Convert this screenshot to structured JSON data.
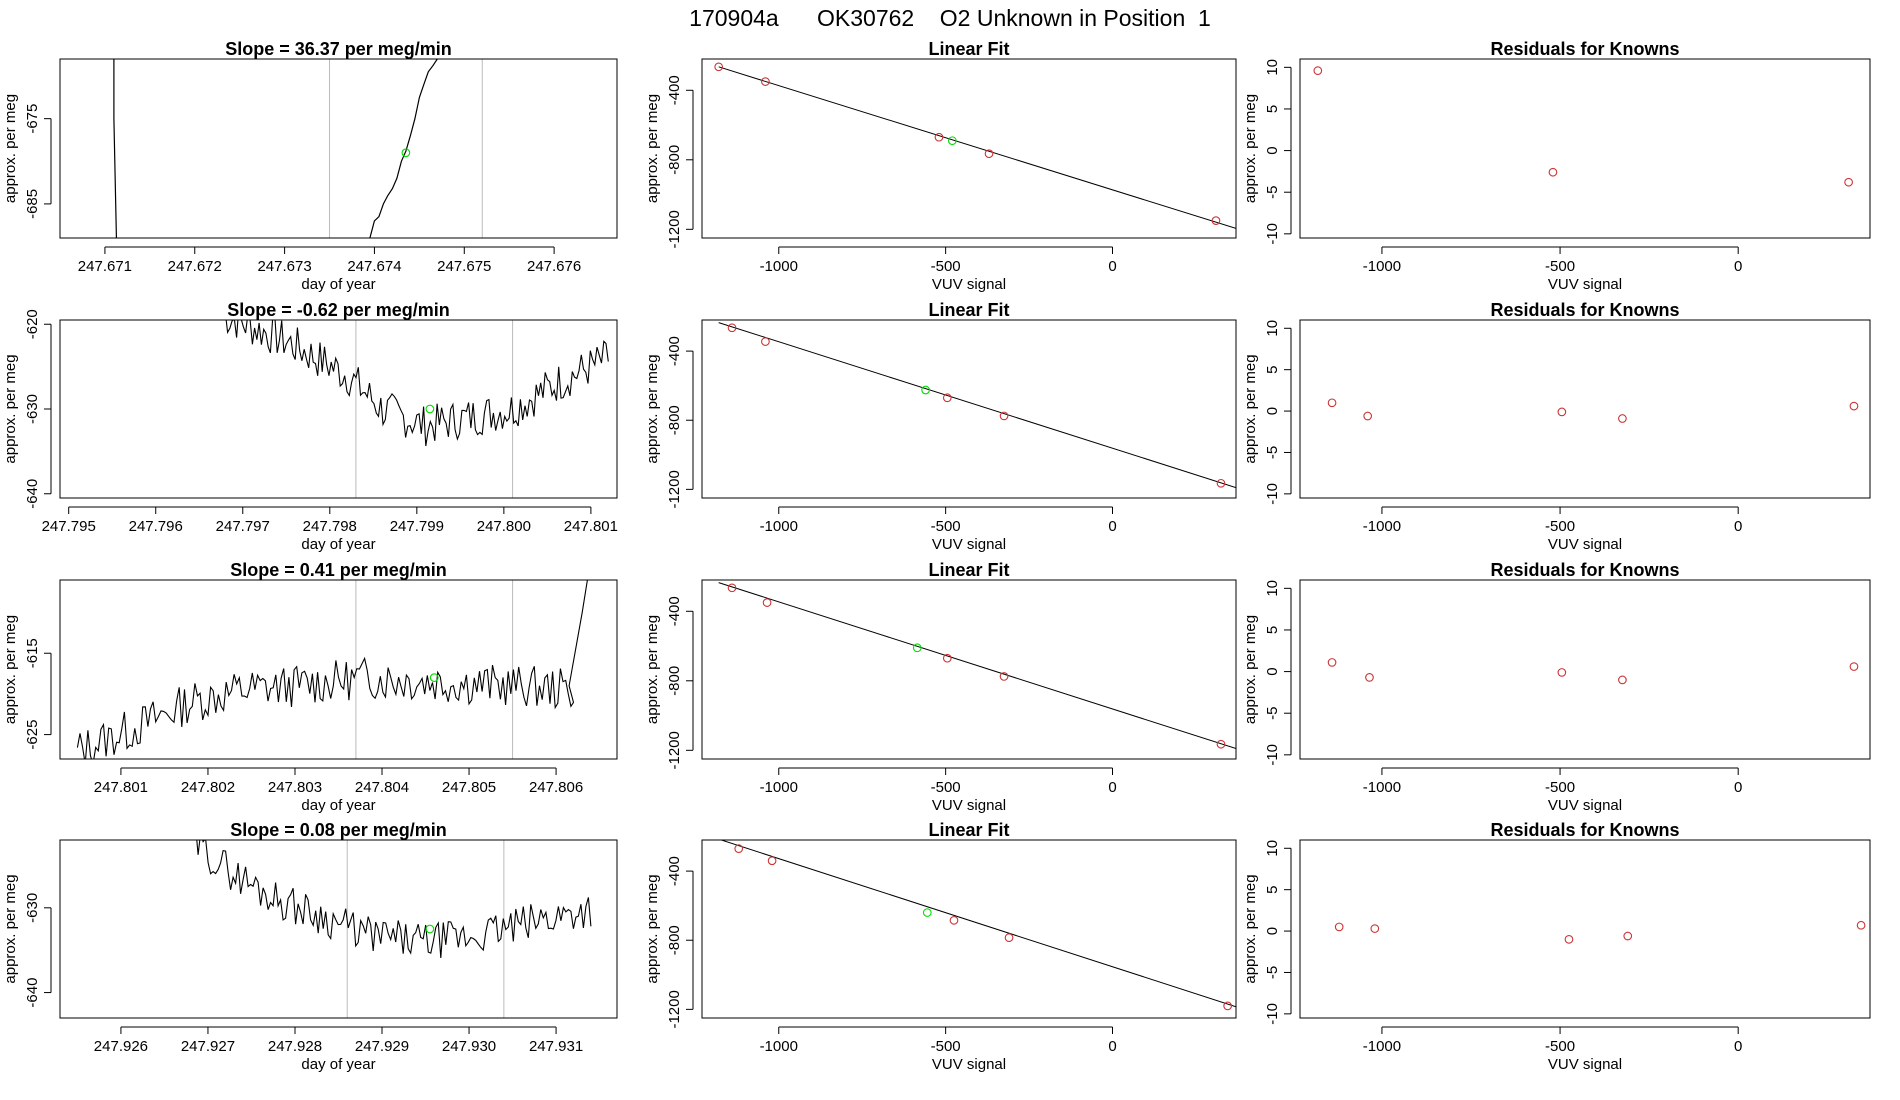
{
  "header": {
    "title": "170904a      OK30762    O2 Unknown in Position  1"
  },
  "colors": {
    "trace": "#000000",
    "unknown": "#00dd00",
    "known": "#cc3333",
    "vline": "#bbbbbb",
    "fitline": "#000000"
  },
  "chart_data": [
    {
      "type": "line",
      "kind": "trace",
      "row": 0,
      "title": "Slope =  36.37  per meg/min",
      "xlabel": "day of year",
      "ylabel": "approx. per meg",
      "xlim": [
        247.6705,
        247.6767
      ],
      "ylim": [
        -689,
        -668
      ],
      "xticks": [
        247.671,
        247.672,
        247.673,
        247.674,
        247.675,
        247.676
      ],
      "xtick_labels": [
        "247.671",
        "247.672",
        "247.673",
        "247.674",
        "247.675",
        "247.676"
      ],
      "yticks": [
        -675,
        -685
      ],
      "ytick_labels": [
        "-675",
        "-685"
      ],
      "vlines": [
        247.6735,
        247.6752
      ],
      "segments": [
        {
          "x": [
            247.6711,
            247.6711,
            247.67115
          ],
          "y": [
            -660,
            -675,
            -700
          ]
        },
        {
          "x": [
            247.6739,
            247.67395,
            247.674,
            247.67405,
            247.6741,
            247.67415,
            247.6742,
            247.67425,
            247.6743,
            247.67435,
            247.6744,
            247.67445,
            247.6745,
            247.67455,
            247.6746,
            247.67465,
            247.6747,
            247.6748
          ],
          "y": [
            -700,
            -689,
            -687,
            -686.5,
            -685,
            -684,
            -683.2,
            -682,
            -680,
            -678.8,
            -677,
            -675,
            -672.5,
            -671,
            -669.5,
            -668.8,
            -668,
            -660
          ]
        }
      ],
      "unknown": {
        "x": 247.67435,
        "y": -679
      }
    },
    {
      "type": "scatter",
      "kind": "fit",
      "row": 0,
      "title": "Linear Fit",
      "xlabel": "VUV signal",
      "ylabel": "approx. per meg",
      "xlim": [
        -1230,
        370
      ],
      "ylim": [
        -1250,
        -220
      ],
      "xticks": [
        -1000,
        -500,
        0
      ],
      "xtick_labels": [
        "-1000",
        "-500",
        "0"
      ],
      "yticks": [
        -400,
        -800,
        -1200
      ],
      "ytick_labels": [
        "-400",
        "-800",
        "-1200"
      ],
      "line": {
        "x": [
          -1180,
          370
        ],
        "y": [
          -265,
          -1195
        ]
      },
      "knowns": [
        {
          "x": -1180,
          "y": -265
        },
        {
          "x": -1040,
          "y": -350
        },
        {
          "x": -520,
          "y": -670
        },
        {
          "x": -370,
          "y": -765
        },
        {
          "x": 310,
          "y": -1150
        }
      ],
      "unknown": {
        "x": -480,
        "y": -690
      }
    },
    {
      "type": "scatter",
      "kind": "resid",
      "row": 0,
      "title": "Residuals for Knowns",
      "xlabel": "VUV signal",
      "ylabel": "approx. per meg",
      "xlim": [
        -1230,
        370
      ],
      "ylim": [
        -10.5,
        11
      ],
      "xticks": [
        -1000,
        -500,
        0
      ],
      "xtick_labels": [
        "-1000",
        "-500",
        "0"
      ],
      "yticks": [
        10,
        5,
        0,
        -5,
        -10
      ],
      "ytick_labels": [
        "10",
        "5",
        "0",
        "-5",
        "-10"
      ],
      "knowns": [
        {
          "x": -1180,
          "y": 9.6
        },
        {
          "x": -520,
          "y": -2.6
        },
        {
          "x": 310,
          "y": -3.8
        }
      ]
    },
    {
      "type": "line",
      "kind": "trace",
      "row": 1,
      "title": "Slope =  -0.62  per meg/min",
      "xlabel": "day of year",
      "ylabel": "approx. per meg",
      "xlim": [
        247.7949,
        247.8013
      ],
      "ylim": [
        -640.5,
        -619.5
      ],
      "xticks": [
        247.795,
        247.796,
        247.797,
        247.798,
        247.799,
        247.8,
        247.801
      ],
      "xtick_labels": [
        "247.795",
        "247.796",
        "247.797",
        "247.798",
        "247.799",
        "247.800",
        "247.801"
      ],
      "yticks": [
        -620,
        -630,
        -640
      ],
      "ytick_labels": [
        "-620",
        "-630",
        "-640"
      ],
      "vlines": [
        247.7983,
        247.8001
      ],
      "seed": 7,
      "t0": 247.7968,
      "t1": 247.8012,
      "n": 170,
      "yfn": [
        [
          247.7968,
          -619
        ],
        [
          247.7975,
          -622
        ],
        [
          247.7982,
          -626
        ],
        [
          247.7986,
          -630
        ],
        [
          247.7991,
          -632
        ],
        [
          247.7996,
          -631
        ],
        [
          247.8001,
          -630
        ],
        [
          247.8006,
          -627
        ],
        [
          247.8012,
          -624
        ]
      ],
      "noise": 2.4,
      "clipTop": -619.5,
      "unknown": {
        "x": 247.79915,
        "y": -630
      }
    },
    {
      "type": "scatter",
      "kind": "fit",
      "row": 1,
      "title": "Linear Fit",
      "xlabel": "VUV signal",
      "ylabel": "approx. per meg",
      "xlim": [
        -1230,
        370
      ],
      "ylim": [
        -1250,
        -220
      ],
      "xticks": [
        -1000,
        -500,
        0
      ],
      "xtick_labels": [
        "-1000",
        "-500",
        "0"
      ],
      "yticks": [
        -400,
        -800,
        -1200
      ],
      "ytick_labels": [
        "-400",
        "-800",
        "-1200"
      ],
      "line": {
        "x": [
          -1180,
          370
        ],
        "y": [
          -235,
          -1190
        ]
      },
      "knowns": [
        {
          "x": -1140,
          "y": -265
        },
        {
          "x": -1040,
          "y": -345
        },
        {
          "x": -495,
          "y": -670
        },
        {
          "x": -325,
          "y": -775
        },
        {
          "x": 325,
          "y": -1165
        }
      ],
      "unknown": {
        "x": -560,
        "y": -625
      }
    },
    {
      "type": "scatter",
      "kind": "resid",
      "row": 1,
      "title": "Residuals for Knowns",
      "xlabel": "VUV signal",
      "ylabel": "approx. per meg",
      "xlim": [
        -1230,
        370
      ],
      "ylim": [
        -10.5,
        11
      ],
      "xticks": [
        -1000,
        -500,
        0
      ],
      "xtick_labels": [
        "-1000",
        "-500",
        "0"
      ],
      "yticks": [
        10,
        5,
        0,
        -5,
        -10
      ],
      "ytick_labels": [
        "10",
        "5",
        "0",
        "-5",
        "-10"
      ],
      "knowns": [
        {
          "x": -1140,
          "y": 1.0
        },
        {
          "x": -1040,
          "y": -0.6
        },
        {
          "x": -495,
          "y": -0.1
        },
        {
          "x": -325,
          "y": -0.9
        },
        {
          "x": 325,
          "y": 0.6
        }
      ]
    },
    {
      "type": "line",
      "kind": "trace",
      "row": 2,
      "title": "Slope =  0.41  per meg/min",
      "xlabel": "day of year",
      "ylabel": "approx. per meg",
      "xlim": [
        247.8003,
        247.8067
      ],
      "ylim": [
        -628,
        -606
      ],
      "xticks": [
        247.801,
        247.802,
        247.803,
        247.804,
        247.805,
        247.806
      ],
      "xtick_labels": [
        "247.801",
        "247.802",
        "247.803",
        "247.804",
        "247.805",
        "247.806"
      ],
      "yticks": [
        -615,
        -625
      ],
      "ytick_labels": [
        "-615",
        "-625"
      ],
      "vlines": [
        247.8037,
        247.8055
      ],
      "seed": 13,
      "t0": 247.8005,
      "t1": 247.8062,
      "n": 190,
      "yfn": [
        [
          247.8005,
          -627
        ],
        [
          247.8012,
          -624
        ],
        [
          247.8018,
          -621
        ],
        [
          247.8024,
          -619.5
        ],
        [
          247.803,
          -619
        ],
        [
          247.8038,
          -618
        ],
        [
          247.8046,
          -618.5
        ],
        [
          247.8055,
          -619
        ],
        [
          247.8062,
          -619.5
        ]
      ],
      "noise": 2.6,
      "clipTop": -606,
      "tail": {
        "x": [
          247.80615,
          247.8063,
          247.80645
        ],
        "y": [
          -619,
          -610,
          -600
        ]
      },
      "unknown": {
        "x": 247.8046,
        "y": -618
      }
    },
    {
      "type": "scatter",
      "kind": "fit",
      "row": 2,
      "title": "Linear Fit",
      "xlabel": "VUV signal",
      "ylabel": "approx. per meg",
      "xlim": [
        -1230,
        370
      ],
      "ylim": [
        -1250,
        -220
      ],
      "xticks": [
        -1000,
        -500,
        0
      ],
      "xtick_labels": [
        "-1000",
        "-500",
        "0"
      ],
      "yticks": [
        -400,
        -800,
        -1200
      ],
      "ytick_labels": [
        "-400",
        "-800",
        "-1200"
      ],
      "line": {
        "x": [
          -1180,
          370
        ],
        "y": [
          -235,
          -1190
        ]
      },
      "knowns": [
        {
          "x": -1140,
          "y": -265
        },
        {
          "x": -1035,
          "y": -350
        },
        {
          "x": -495,
          "y": -670
        },
        {
          "x": -325,
          "y": -775
        },
        {
          "x": 325,
          "y": -1165
        }
      ],
      "unknown": {
        "x": -585,
        "y": -610
      }
    },
    {
      "type": "scatter",
      "kind": "resid",
      "row": 2,
      "title": "Residuals for Knowns",
      "xlabel": "VUV signal",
      "ylabel": "approx. per meg",
      "xlim": [
        -1230,
        370
      ],
      "ylim": [
        -10.5,
        11
      ],
      "xticks": [
        -1000,
        -500,
        0
      ],
      "xtick_labels": [
        "-1000",
        "-500",
        "0"
      ],
      "yticks": [
        10,
        5,
        0,
        -5,
        -10
      ],
      "ytick_labels": [
        "10",
        "5",
        "0",
        "-5",
        "-10"
      ],
      "knowns": [
        {
          "x": -1140,
          "y": 1.1
        },
        {
          "x": -1035,
          "y": -0.7
        },
        {
          "x": -495,
          "y": -0.1
        },
        {
          "x": -325,
          "y": -1.0
        },
        {
          "x": 325,
          "y": 0.6
        }
      ]
    },
    {
      "type": "line",
      "kind": "trace",
      "row": 3,
      "title": "Slope =  0.08  per meg/min",
      "xlabel": "day of year",
      "ylabel": "approx. per meg",
      "xlim": [
        247.9253,
        247.9317
      ],
      "ylim": [
        -643,
        -622
      ],
      "xticks": [
        247.926,
        247.927,
        247.928,
        247.929,
        247.93,
        247.931
      ],
      "xtick_labels": [
        "247.926",
        "247.927",
        "247.928",
        "247.929",
        "247.930",
        "247.931"
      ],
      "yticks": [
        -630,
        -640
      ],
      "ytick_labels": [
        "-630",
        "-640"
      ],
      "vlines": [
        247.9286,
        247.9304
      ],
      "seed": 29,
      "t0": 247.9268,
      "t1": 247.9314,
      "n": 160,
      "yfn": [
        [
          247.9268,
          -622
        ],
        [
          247.9273,
          -626
        ],
        [
          247.9278,
          -629
        ],
        [
          247.9283,
          -631
        ],
        [
          247.9288,
          -633
        ],
        [
          247.9294,
          -634
        ],
        [
          247.93,
          -633.5
        ],
        [
          247.9306,
          -632
        ],
        [
          247.9314,
          -630
        ]
      ],
      "noise": 2.2,
      "clipTop": -622,
      "unknown": {
        "x": 247.92955,
        "y": -632.5
      }
    },
    {
      "type": "scatter",
      "kind": "fit",
      "row": 3,
      "title": "Linear Fit",
      "xlabel": "VUV signal",
      "ylabel": "approx. per meg",
      "xlim": [
        -1230,
        370
      ],
      "ylim": [
        -1250,
        -220
      ],
      "xticks": [
        -1000,
        -500,
        0
      ],
      "xtick_labels": [
        "-1000",
        "-500",
        "0"
      ],
      "yticks": [
        -400,
        -800,
        -1200
      ],
      "ytick_labels": [
        "-400",
        "-800",
        "-1200"
      ],
      "line": {
        "x": [
          -1180,
          370
        ],
        "y": [
          -215,
          -1185
        ]
      },
      "knowns": [
        {
          "x": -1120,
          "y": -270
        },
        {
          "x": -1020,
          "y": -340
        },
        {
          "x": -475,
          "y": -685
        },
        {
          "x": -310,
          "y": -785
        },
        {
          "x": 345,
          "y": -1180
        }
      ],
      "unknown": {
        "x": -555,
        "y": -640
      }
    },
    {
      "type": "scatter",
      "kind": "resid",
      "row": 3,
      "title": "Residuals for Knowns",
      "xlabel": "VUV signal",
      "ylabel": "approx. per meg",
      "xlim": [
        -1230,
        370
      ],
      "ylim": [
        -10.5,
        11
      ],
      "xticks": [
        -1000,
        -500,
        0
      ],
      "xtick_labels": [
        "-1000",
        "-500",
        "0"
      ],
      "yticks": [
        10,
        5,
        0,
        -5,
        -10
      ],
      "ytick_labels": [
        "10",
        "5",
        "0",
        "-5",
        "-10"
      ],
      "knowns": [
        {
          "x": -1120,
          "y": 0.5
        },
        {
          "x": -1020,
          "y": 0.3
        },
        {
          "x": -475,
          "y": -1.0
        },
        {
          "x": -310,
          "y": -0.6
        },
        {
          "x": 345,
          "y": 0.7
        }
      ]
    }
  ]
}
